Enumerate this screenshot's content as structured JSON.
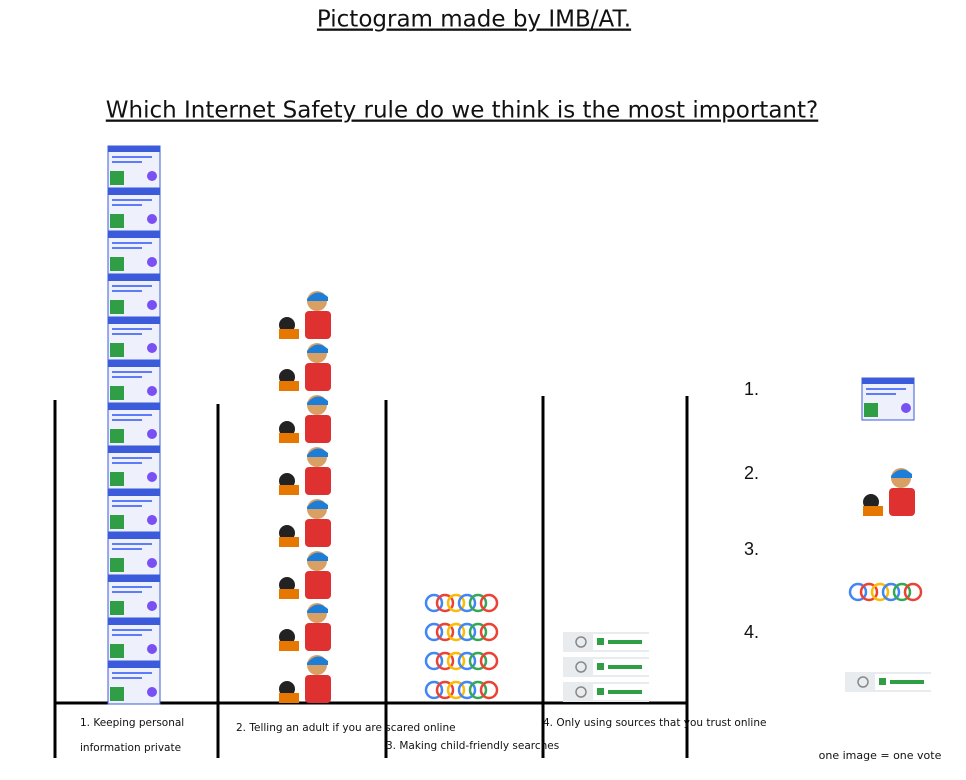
{
  "chart_data": {
    "type": "pictogram",
    "title": "Pictogram made by IMB/AT.",
    "subtitle": "Which Internet Safety rule do we think is the most important?",
    "categories": [
      "1. Keeping personal information private",
      "2. Telling an adult if you are scared online",
      "3. Making child-friendly searches",
      "4. Only using sources that you trust online"
    ],
    "values": [
      13,
      8,
      4,
      3
    ],
    "legend": [
      "1.",
      "2.",
      "3.",
      "4."
    ],
    "note": "one image = one vote"
  }
}
